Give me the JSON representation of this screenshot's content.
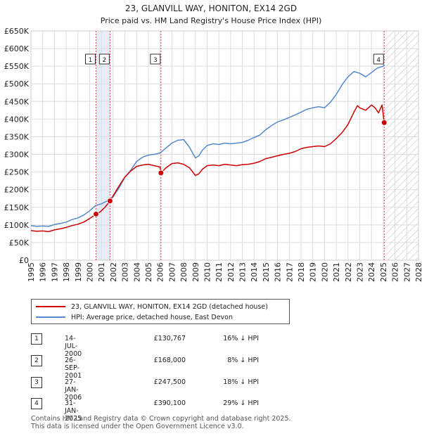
{
  "chart_data": {
    "type": "line",
    "title": "23, GLANVILL WAY, HONITON, EX14 2GD",
    "subtitle": "Price paid vs. HM Land Registry's House Price Index (HPI)",
    "xlim": [
      1995,
      2028
    ],
    "ylim": [
      0,
      650000
    ],
    "y_ticks": [
      0,
      50000,
      100000,
      150000,
      200000,
      250000,
      300000,
      350000,
      400000,
      450000,
      500000,
      550000,
      600000,
      650000
    ],
    "y_tick_labels": [
      "£0",
      "£50K",
      "£100K",
      "£150K",
      "£200K",
      "£250K",
      "£300K",
      "£350K",
      "£400K",
      "£450K",
      "£500K",
      "£550K",
      "£600K",
      "£650K"
    ],
    "x_ticks": [
      1995,
      1996,
      1997,
      1998,
      1999,
      2000,
      2001,
      2002,
      2003,
      2004,
      2005,
      2006,
      2007,
      2008,
      2009,
      2010,
      2011,
      2012,
      2013,
      2014,
      2015,
      2016,
      2017,
      2018,
      2019,
      2020,
      2021,
      2022,
      2023,
      2024,
      2025,
      2026,
      2027,
      2028
    ],
    "grid": true,
    "series": [
      {
        "name": "23, GLANVILL WAY, HONITON, EX14 2GD (detached house)",
        "color": "#cc0000",
        "x": [
          1995.0,
          1995.5,
          1996.0,
          1996.5,
          1997.0,
          1997.5,
          1998.0,
          1998.5,
          1999.0,
          1999.5,
          2000.0,
          2000.54,
          2000.9,
          2001.3,
          2001.73,
          2002.0,
          2002.5,
          2003.0,
          2003.5,
          2004.0,
          2004.5,
          2005.0,
          2005.5,
          2006.0,
          2006.07,
          2006.5,
          2007.0,
          2007.5,
          2008.0,
          2008.5,
          2009.0,
          2009.3,
          2009.6,
          2010.0,
          2010.5,
          2011.0,
          2011.5,
          2012.0,
          2012.5,
          2013.0,
          2013.5,
          2014.0,
          2014.5,
          2015.0,
          2015.5,
          2016.0,
          2016.5,
          2017.0,
          2017.5,
          2018.0,
          2018.5,
          2019.0,
          2019.5,
          2020.0,
          2020.5,
          2021.0,
          2021.5,
          2022.0,
          2022.5,
          2022.8,
          2023.0,
          2023.5,
          2024.0,
          2024.3,
          2024.6,
          2024.9,
          2025.08
        ],
        "y": [
          84000,
          82000,
          83000,
          81000,
          86000,
          89000,
          93000,
          98000,
          102000,
          108000,
          118000,
          130767,
          137000,
          150000,
          168000,
          183000,
          210000,
          236000,
          253000,
          266000,
          270000,
          272000,
          268000,
          264000,
          247500,
          262000,
          274000,
          276000,
          272000,
          262000,
          240000,
          245000,
          258000,
          268000,
          270000,
          268000,
          272000,
          270000,
          268000,
          271000,
          272000,
          275000,
          280000,
          288000,
          292000,
          296000,
          300000,
          303000,
          308000,
          316000,
          320000,
          322000,
          324000,
          322000,
          330000,
          345000,
          362000,
          385000,
          420000,
          438000,
          432000,
          425000,
          440000,
          432000,
          418000,
          440000,
          390100
        ]
      },
      {
        "name": "HPI: Average price, detached house, East Devon",
        "color": "#5588cc",
        "x": [
          1995.0,
          1995.5,
          1996.0,
          1996.5,
          1997.0,
          1997.5,
          1998.0,
          1998.5,
          1999.0,
          1999.5,
          2000.0,
          2000.5,
          2001.0,
          2001.5,
          2002.0,
          2002.5,
          2003.0,
          2003.5,
          2004.0,
          2004.5,
          2005.0,
          2005.5,
          2006.0,
          2006.5,
          2007.0,
          2007.5,
          2008.0,
          2008.5,
          2009.0,
          2009.3,
          2009.6,
          2010.0,
          2010.5,
          2011.0,
          2011.5,
          2012.0,
          2012.5,
          2013.0,
          2013.5,
          2014.0,
          2014.5,
          2015.0,
          2015.5,
          2016.0,
          2016.5,
          2017.0,
          2017.5,
          2018.0,
          2018.5,
          2019.0,
          2019.5,
          2020.0,
          2020.5,
          2021.0,
          2021.5,
          2022.0,
          2022.5,
          2023.0,
          2023.5,
          2024.0,
          2024.5,
          2025.0,
          2025.1
        ],
        "y": [
          98000,
          96000,
          97000,
          96000,
          101000,
          104000,
          108000,
          115000,
          120000,
          128000,
          140000,
          155000,
          160000,
          168000,
          180000,
          205000,
          235000,
          255000,
          280000,
          292000,
          298000,
          300000,
          304000,
          318000,
          332000,
          340000,
          342000,
          320000,
          290000,
          296000,
          312000,
          325000,
          330000,
          328000,
          332000,
          330000,
          332000,
          334000,
          340000,
          348000,
          355000,
          370000,
          382000,
          392000,
          398000,
          405000,
          412000,
          420000,
          428000,
          432000,
          435000,
          432000,
          448000,
          470000,
          498000,
          520000,
          535000,
          530000,
          520000,
          532000,
          545000,
          550000,
          555000
        ]
      }
    ],
    "transactions": [
      {
        "num": "1",
        "x": 2000.54,
        "price": 130767,
        "date": "14-JUL-2000",
        "price_label": "£130,767",
        "hpi_label": "16% ↓ HPI"
      },
      {
        "num": "2",
        "x": 2001.73,
        "price": 168000,
        "date": "26-SEP-2001",
        "price_label": "£168,000",
        "hpi_label": "8% ↓ HPI"
      },
      {
        "num": "3",
        "x": 2006.07,
        "price": 247500,
        "date": "27-JAN-2006",
        "price_label": "£247,500",
        "hpi_label": "18% ↓ HPI"
      },
      {
        "num": "4",
        "x": 2025.08,
        "price": 390100,
        "date": "31-JAN-2025",
        "price_label": "£390,100",
        "hpi_label": "29% ↓ HPI"
      }
    ],
    "shaded_spans": [
      [
        2000.54,
        2001.73
      ]
    ],
    "future_hatch_from": 2025.08,
    "legend_position": "bottom-left"
  },
  "footer": {
    "line1": "Contains HM Land Registry data © Crown copyright and database right 2025.",
    "line2": "This data is licensed under the Open Government Licence v3.0."
  }
}
